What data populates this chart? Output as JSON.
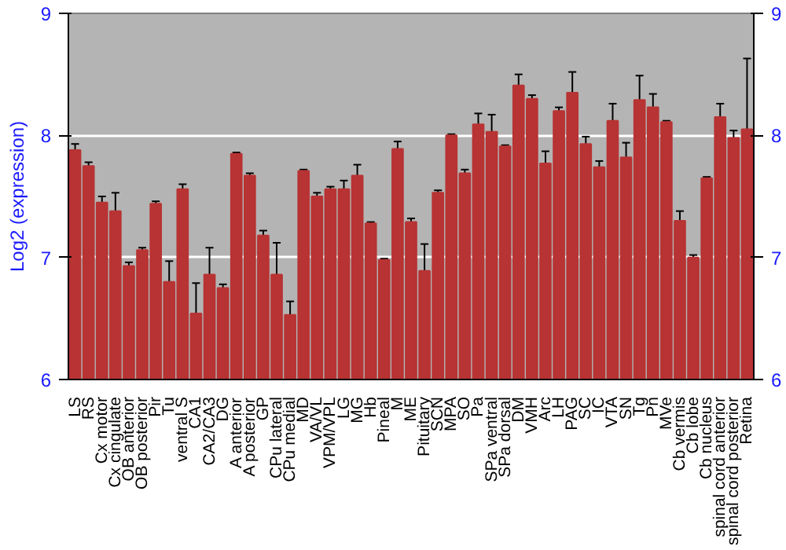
{
  "chart_data": {
    "type": "bar",
    "ylabel": "Log2 (expression)",
    "categories": [
      "LS",
      "RS",
      "Cx motor",
      "Cx cingulate",
      "OB anterior",
      "OB posterior",
      "Pir",
      "Tu",
      "ventral S",
      "CA1",
      "CA2/CA3",
      "DG",
      "A anterior",
      "A posterior",
      "GP",
      "CPu lateral",
      "CPu medial",
      "MD",
      "VA/VL",
      "VPM/VPL",
      "LG",
      "MG",
      "Hb",
      "Pineal",
      "M",
      "ME",
      "Pituitary",
      "SCN",
      "MPA",
      "SO",
      "Pa",
      "SPa ventral",
      "SPa dorsal",
      "DM",
      "VMH",
      "Arc",
      "LH",
      "PAG",
      "SC",
      "IC",
      "VTA",
      "SN",
      "Tg",
      "Pn",
      "MVe",
      "Cb vermis",
      "Cb lobe",
      "Cb nucleus",
      "spinal cord anterior",
      "spinal cord posterior",
      "Retina"
    ],
    "values": [
      7.88,
      7.75,
      7.45,
      7.38,
      6.93,
      7.06,
      7.44,
      6.8,
      7.56,
      6.54,
      6.86,
      6.75,
      7.85,
      7.67,
      7.18,
      6.86,
      6.53,
      7.71,
      7.5,
      7.56,
      7.56,
      7.67,
      7.28,
      6.98,
      7.89,
      7.29,
      6.89,
      7.53,
      8.0,
      7.69,
      8.09,
      8.03,
      7.91,
      8.41,
      8.3,
      7.77,
      8.2,
      8.35,
      7.93,
      7.74,
      8.12,
      7.82,
      8.29,
      8.23,
      8.11,
      7.3,
      7.0,
      7.65,
      8.15,
      7.98,
      8.05
    ],
    "errors": [
      0.05,
      0.03,
      0.05,
      0.15,
      0.03,
      0.02,
      0.02,
      0.17,
      0.04,
      0.25,
      0.22,
      0.03,
      0.01,
      0.02,
      0.04,
      0.26,
      0.11,
      0.01,
      0.03,
      0.02,
      0.07,
      0.09,
      0.01,
      0.01,
      0.06,
      0.03,
      0.22,
      0.02,
      0.01,
      0.03,
      0.09,
      0.14,
      0.01,
      0.09,
      0.03,
      0.1,
      0.03,
      0.17,
      0.06,
      0.05,
      0.14,
      0.12,
      0.2,
      0.11,
      0.01,
      0.08,
      0.02,
      0.01,
      0.11,
      0.06,
      0.58
    ],
    "color": "#b83333",
    "ylim": [
      6,
      9
    ],
    "yticks": [
      6,
      7,
      8,
      9
    ],
    "y2lim": [
      6,
      9
    ],
    "y2ticks": [
      6,
      7,
      8,
      9
    ],
    "grid": "y"
  }
}
